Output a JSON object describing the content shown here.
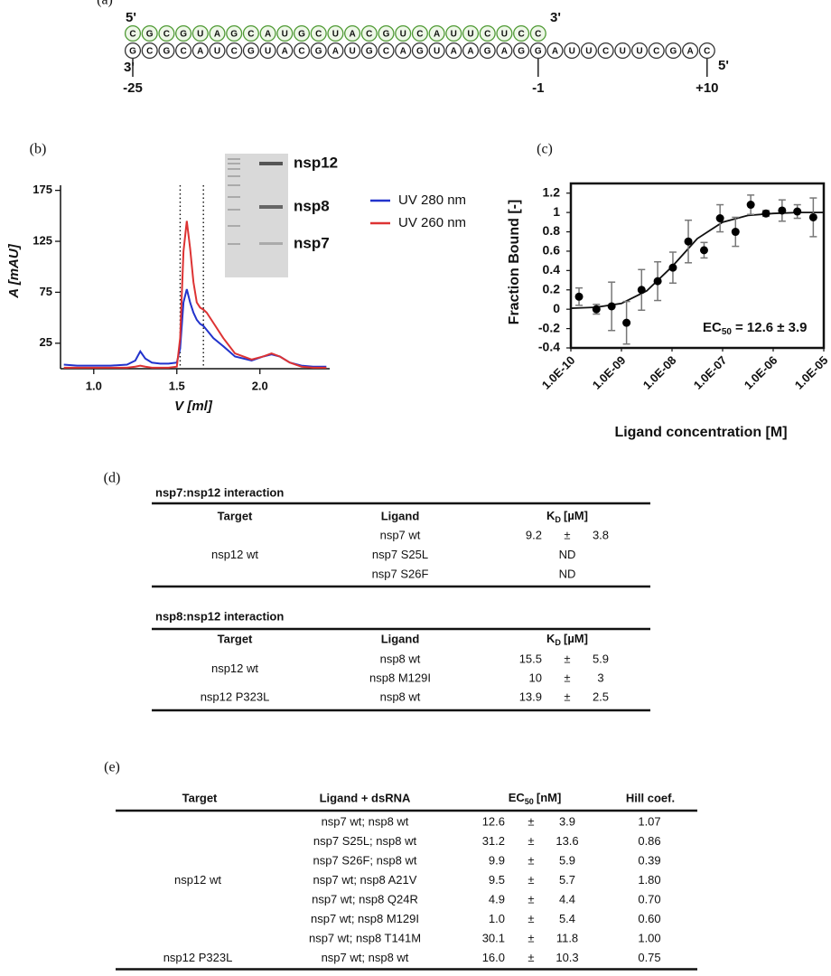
{
  "panel_labels": [
    "(a)",
    "(b)",
    "(c)",
    "(d)",
    "(e)"
  ],
  "panel_a": {
    "top_strand": [
      "C",
      "G",
      "C",
      "G",
      "U",
      "A",
      "G",
      "C",
      "A",
      "U",
      "G",
      "C",
      "U",
      "A",
      "C",
      "G",
      "U",
      "C",
      "A",
      "U",
      "U",
      "C",
      "U",
      "C",
      "C"
    ],
    "top_strand_ends": [
      "5'",
      "3'"
    ],
    "bottom_strand": [
      "G",
      "C",
      "G",
      "C",
      "A",
      "U",
      "C",
      "G",
      "U",
      "A",
      "C",
      "G",
      "A",
      "U",
      "G",
      "C",
      "A",
      "G",
      "U",
      "A",
      "A",
      "G",
      "A",
      "G",
      "G",
      "A",
      "U",
      "U",
      "C",
      "U",
      "U",
      "C",
      "G",
      "A",
      "C"
    ],
    "bottom_strand_ends": [
      "3'",
      "5'"
    ],
    "positions": [
      "-25",
      "-1",
      "+10"
    ]
  },
  "chart_data": [
    {
      "type": "line",
      "ylabel": "A [mAU]",
      "xlabel": "V [ml]",
      "x": [
        0.82,
        0.9,
        1.0,
        1.1,
        1.2,
        1.25,
        1.28,
        1.31,
        1.35,
        1.4,
        1.45,
        1.5,
        1.52,
        1.54,
        1.56,
        1.58,
        1.6,
        1.62,
        1.64,
        1.66,
        1.68,
        1.72,
        1.78,
        1.85,
        1.95,
        2.02,
        2.07,
        2.12,
        2.18,
        2.25,
        2.32,
        2.4
      ],
      "series": [
        {
          "name": "UV 280 nm",
          "color": "#2233cc",
          "values": [
            4,
            3,
            3,
            3,
            4,
            8,
            17,
            10,
            6,
            5,
            5,
            6,
            20,
            65,
            78,
            65,
            55,
            48,
            44,
            42,
            38,
            30,
            22,
            12,
            8,
            12,
            14,
            12,
            6,
            3,
            2,
            2
          ]
        },
        {
          "name": "UV 260 nm",
          "color": "#dd3333",
          "values": [
            1,
            1,
            1,
            1,
            1,
            2,
            3,
            2,
            1,
            1,
            1,
            2,
            30,
            115,
            145,
            118,
            85,
            65,
            60,
            58,
            55,
            45,
            30,
            15,
            9,
            12,
            15,
            12,
            6,
            2,
            1,
            1
          ]
        }
      ],
      "xlim": [
        0.8,
        2.42
      ],
      "ylim": [
        0,
        180
      ],
      "xticks": [
        {
          "value": 1,
          "label": "1.0"
        },
        1.5,
        {
          "value": 2,
          "label": "2.0"
        }
      ],
      "yticks": [
        25,
        75,
        125,
        175
      ],
      "vlines": [
        1.52,
        1.66
      ],
      "inset_labels": [
        "nsp12",
        "nsp8",
        "nsp7"
      ],
      "legend": "upper right"
    },
    {
      "type": "scatter",
      "ylabel": "Fraction Bound [-]",
      "xlabel": "Ligand concentration [M]",
      "x": [
        1.45e-10,
        3.2e-10,
        6.4e-10,
        1.26e-09,
        2.5e-09,
        5.2e-09,
        1.04e-08,
        2.1e-08,
        4.3e-08,
        8.9e-08,
        1.8e-07,
        3.6e-07,
        7.2e-07,
        1.5e-06,
        3e-06,
        6.2e-06
      ],
      "values": [
        0.13,
        0.0,
        0.03,
        -0.14,
        0.2,
        0.29,
        0.43,
        0.7,
        0.61,
        0.94,
        0.8,
        1.08,
        0.99,
        1.02,
        1.01,
        0.95
      ],
      "errors": [
        0.09,
        0.05,
        0.25,
        0.22,
        0.21,
        0.2,
        0.16,
        0.22,
        0.08,
        0.14,
        0.15,
        0.1,
        0.03,
        0.11,
        0.07,
        0.2
      ],
      "color": "#000000",
      "fit": {
        "x": [
          1e-10,
          3.16e-10,
          1e-09,
          3.16e-09,
          1e-08,
          3.16e-08,
          1e-07,
          3.16e-07,
          1e-06,
          3.16e-06,
          1e-05
        ],
        "values": [
          0.01,
          0.02,
          0.06,
          0.19,
          0.44,
          0.73,
          0.9,
          0.97,
          0.99,
          1.0,
          1.0
        ]
      },
      "log_x": true,
      "xlim": [
        1e-10,
        1e-05
      ],
      "ylim": [
        -0.4,
        1.3
      ],
      "xticks": [
        {
          "value": 1e-10,
          "label": "1.0E-10"
        },
        {
          "value": 1e-09,
          "label": "1.0E-09"
        },
        {
          "value": 1e-08,
          "label": "1.0E-08"
        },
        {
          "value": 1e-07,
          "label": "1.0E-07"
        },
        {
          "value": 1e-06,
          "label": "1.0E-06"
        },
        {
          "value": 1e-05,
          "label": "1.0E-05"
        }
      ],
      "yticks": [
        -0.4,
        -0.2,
        0,
        0.2,
        0.4,
        0.6,
        0.8,
        1,
        1.2
      ],
      "annotation": [
        "EC",
        "50",
        "= 12.6 ± 3.9"
      ]
    }
  ],
  "table_d": [
    {
      "title": "nsp7:nsp12 interaction",
      "header": [
        "Target",
        "Ligand",
        {
          "text": "K",
          "sub": "D",
          "rest": "[µM]"
        }
      ],
      "groups": [
        {
          "target": "nsp12 wt",
          "rows": [
            [
              "nsp7 wt",
              "9.2",
              "±",
              "3.8"
            ],
            [
              "nsp7 S25L",
              "ND"
            ],
            [
              "nsp7 S26F",
              "ND"
            ]
          ]
        }
      ]
    },
    {
      "title": "nsp8:nsp12 interaction",
      "header": [
        "Target",
        "Ligand",
        {
          "text": "K",
          "sub": "D",
          "rest": "[µM]"
        }
      ],
      "groups": [
        {
          "target": "nsp12 wt",
          "rows": [
            [
              "nsp8 wt",
              "15.5",
              "±",
              "5.9"
            ],
            [
              "nsp8 M129I",
              "10",
              "±",
              "3"
            ]
          ]
        },
        {
          "target": "nsp12 P323L",
          "rows": [
            [
              "nsp8 wt",
              "13.9",
              "±",
              "2.5"
            ]
          ]
        }
      ]
    }
  ],
  "table_e": {
    "header": [
      "Target",
      "Ligand + dsRNA",
      {
        "text": "EC",
        "sub": "50",
        "rest": "[nM]"
      },
      "Hill coef."
    ],
    "groups": [
      {
        "target": "nsp12 wt",
        "rows": [
          [
            "nsp7 wt; nsp8 wt",
            "12.6",
            "±",
            "3.9",
            "1.07"
          ],
          [
            "nsp7 S25L; nsp8 wt",
            "31.2",
            "±",
            "13.6",
            "0.86"
          ],
          [
            "nsp7 S26F; nsp8 wt",
            "9.9",
            "±",
            "5.9",
            "0.39"
          ],
          [
            "nsp7 wt; nsp8 A21V",
            "9.5",
            "±",
            "5.7",
            "1.80"
          ],
          [
            "nsp7 wt; nsp8 Q24R",
            "4.9",
            "±",
            "4.4",
            "0.70"
          ],
          [
            "nsp7 wt; nsp8 M129I",
            "1.0",
            "±",
            "5.4",
            "0.60"
          ],
          [
            "nsp7 wt; nsp8 T141M",
            "30.1",
            "±",
            "11.8",
            "1.00"
          ]
        ]
      },
      {
        "target": "nsp12 P323L",
        "rows": [
          [
            "nsp7 wt; nsp8 wt",
            "16.0",
            "±",
            "10.3",
            "0.75"
          ]
        ]
      }
    ]
  }
}
